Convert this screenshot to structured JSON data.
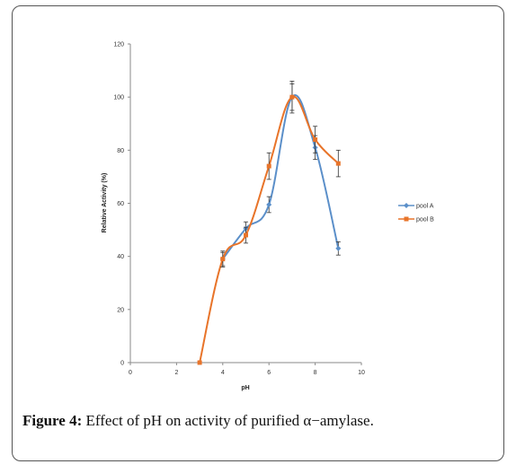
{
  "chart_data": {
    "type": "scatter",
    "xlabel": "pH",
    "ylabel": "Relative Activity (%)",
    "xlim": [
      0,
      10
    ],
    "ylim": [
      0,
      120
    ],
    "xticks": [
      "0",
      "2",
      "4",
      "6",
      "8",
      "10"
    ],
    "yticks": [
      "0",
      "20",
      "40",
      "60",
      "80",
      "100",
      "120"
    ],
    "grid": false,
    "legend": "right",
    "smooth_lines": true,
    "series": [
      {
        "name": "pool A",
        "color": "#5b8fc9",
        "marker": "diamond",
        "x": [
          4,
          5,
          6,
          7,
          8,
          9
        ],
        "y": [
          39,
          50.5,
          59.5,
          100,
          81,
          43
        ],
        "err": [
          2.5,
          2.5,
          3,
          5,
          4.5,
          2.5
        ]
      },
      {
        "name": "pool B",
        "color": "#e8742a",
        "marker": "square",
        "x": [
          3,
          4,
          5,
          6,
          7,
          8,
          9
        ],
        "y": [
          0,
          39,
          48,
          74,
          100,
          84,
          75
        ],
        "err": [
          0,
          3,
          3,
          5,
          6,
          5,
          5
        ]
      }
    ]
  },
  "caption": {
    "label": "Figure 4:",
    "text": " Effect of pH on activity of purified α−amylase."
  }
}
